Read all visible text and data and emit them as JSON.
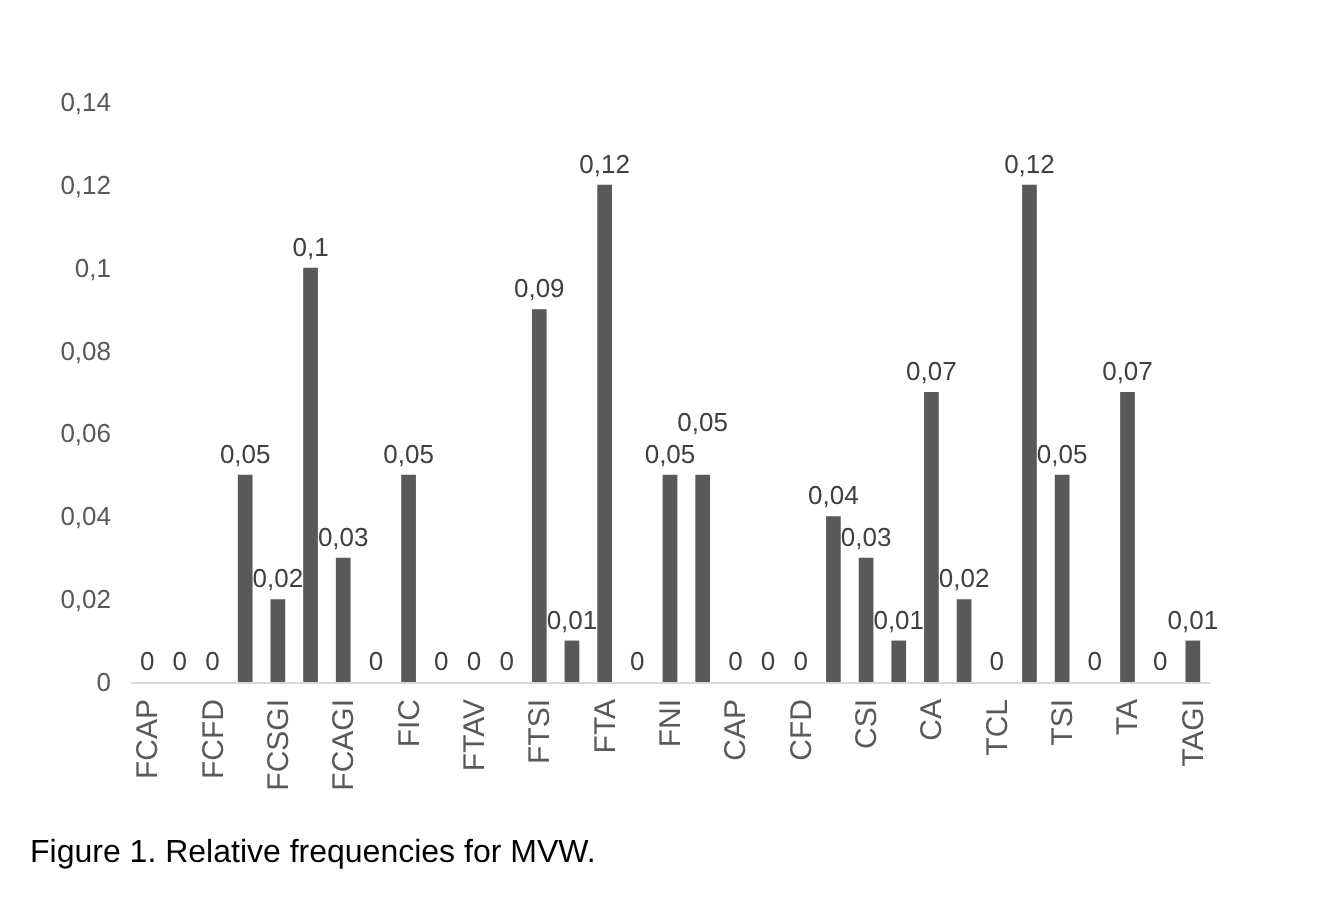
{
  "chart_data": {
    "type": "bar",
    "categories": [
      "FCAP",
      null,
      "FCFD",
      null,
      "FCSGI",
      null,
      "FCAGI",
      null,
      "FIC",
      null,
      "FTAV",
      null,
      "FTSI",
      null,
      "FTA",
      null,
      "FNI",
      null,
      "CAP",
      null,
      "CFD",
      null,
      "CSI",
      null,
      "CA",
      null,
      "TCL",
      null,
      "TSI",
      null,
      "TA",
      null,
      "TAGI"
    ],
    "values": [
      0,
      0,
      0,
      0.05,
      0.02,
      0.1,
      0.03,
      0,
      0.05,
      0,
      0,
      0,
      0.09,
      0.01,
      0.12,
      0,
      0.05,
      0.05,
      0,
      0,
      0,
      0.04,
      0.03,
      0.01,
      0.07,
      0.02,
      0,
      0.12,
      0.05,
      0,
      0.07,
      0,
      0.01
    ],
    "value_labels": [
      "0",
      "0",
      "0",
      "0,05",
      "0,02",
      "0,1",
      "0,03",
      "0",
      "0,05",
      "0",
      "0",
      "0",
      "0,09",
      "0,01",
      "0,12",
      "0",
      "0,05",
      "0,05",
      "0",
      "0",
      "0",
      "0,04",
      "0,03",
      "0,01",
      "0,07",
      "0,02",
      "0",
      "0,12",
      "0,05",
      "0",
      "0,07",
      "0",
      "0,01"
    ],
    "color": "#595959",
    "ylim": [
      0,
      0.14
    ],
    "yticks": [
      0,
      {
        "value": 0.02,
        "label": "0,02"
      },
      {
        "value": 0.04,
        "label": "0,04"
      },
      {
        "value": 0.06,
        "label": "0,06"
      },
      {
        "value": 0.08,
        "label": "0,08"
      },
      {
        "value": 0.1,
        "label": "0,1"
      },
      {
        "value": 0.12,
        "label": "0,12"
      },
      {
        "value": 0.14,
        "label": "0,14"
      }
    ],
    "grid": false,
    "annotations": [
      "Figure 1. Relative frequencies for MVW."
    ]
  }
}
